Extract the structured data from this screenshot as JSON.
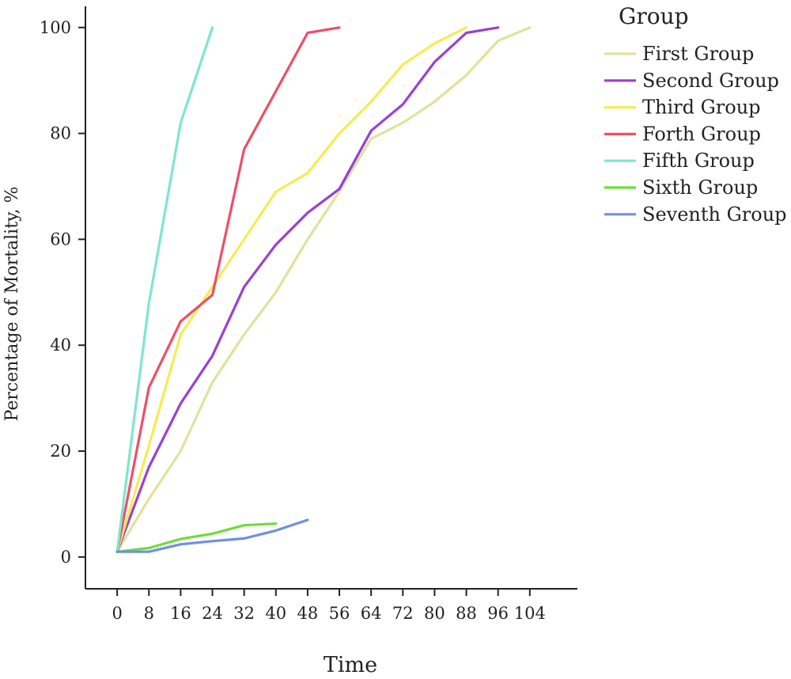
{
  "chart_data": {
    "type": "line",
    "title": "",
    "xlabel": "Time",
    "ylabel": "Percentage of Mortality, %",
    "x_ticks": [
      0,
      8,
      16,
      24,
      32,
      40,
      48,
      56,
      64,
      72,
      80,
      88,
      96,
      104
    ],
    "y_ticks": [
      0,
      20,
      40,
      60,
      80,
      100
    ],
    "xlim": [
      -8,
      116
    ],
    "ylim": [
      -6,
      104
    ],
    "grid": false,
    "legend": {
      "title": "Group",
      "position": "right"
    },
    "series": [
      {
        "name": "First Group",
        "color": "#dfe39a",
        "x": [
          0,
          8,
          16,
          24,
          32,
          40,
          48,
          56,
          64,
          72,
          80,
          88,
          96,
          104
        ],
        "y": [
          1,
          11,
          20,
          33,
          42,
          50,
          60,
          69,
          79,
          82,
          86,
          91,
          97.5,
          100
        ]
      },
      {
        "name": "Second Group",
        "color": "#9b3fd6",
        "x": [
          0,
          8,
          16,
          24,
          32,
          40,
          48,
          56,
          64,
          72,
          80,
          88,
          96
        ],
        "y": [
          1,
          17,
          29,
          38,
          51,
          59,
          65,
          69.5,
          80.5,
          85.5,
          93.5,
          99,
          100
        ]
      },
      {
        "name": "Third Group",
        "color": "#f5ec52",
        "x": [
          0,
          8,
          16,
          24,
          32,
          40,
          48,
          56,
          64,
          72,
          80,
          88
        ],
        "y": [
          1,
          21,
          42,
          51,
          60,
          69,
          72.5,
          80,
          86,
          93,
          97,
          100
        ]
      },
      {
        "name": "Forth Group",
        "color": "#ef4f66",
        "x": [
          0,
          8,
          16,
          24,
          32,
          40,
          48,
          56
        ],
        "y": [
          1,
          32,
          44.5,
          49.5,
          77,
          88,
          99,
          100
        ]
      },
      {
        "name": "Fifth Group",
        "color": "#7ee6cf",
        "x": [
          0,
          8,
          16,
          24
        ],
        "y": [
          1,
          48,
          82,
          100
        ]
      },
      {
        "name": "Sixth Group",
        "color": "#6fdc3c",
        "x": [
          0,
          8,
          16,
          24,
          32,
          40
        ],
        "y": [
          1,
          1.7,
          3.4,
          4.4,
          6,
          6.3
        ]
      },
      {
        "name": "Seventh Group",
        "color": "#6f8fe6",
        "x": [
          0,
          8,
          16,
          24,
          32,
          40,
          48
        ],
        "y": [
          1,
          1,
          2.4,
          3,
          3.5,
          5,
          7
        ]
      }
    ]
  }
}
